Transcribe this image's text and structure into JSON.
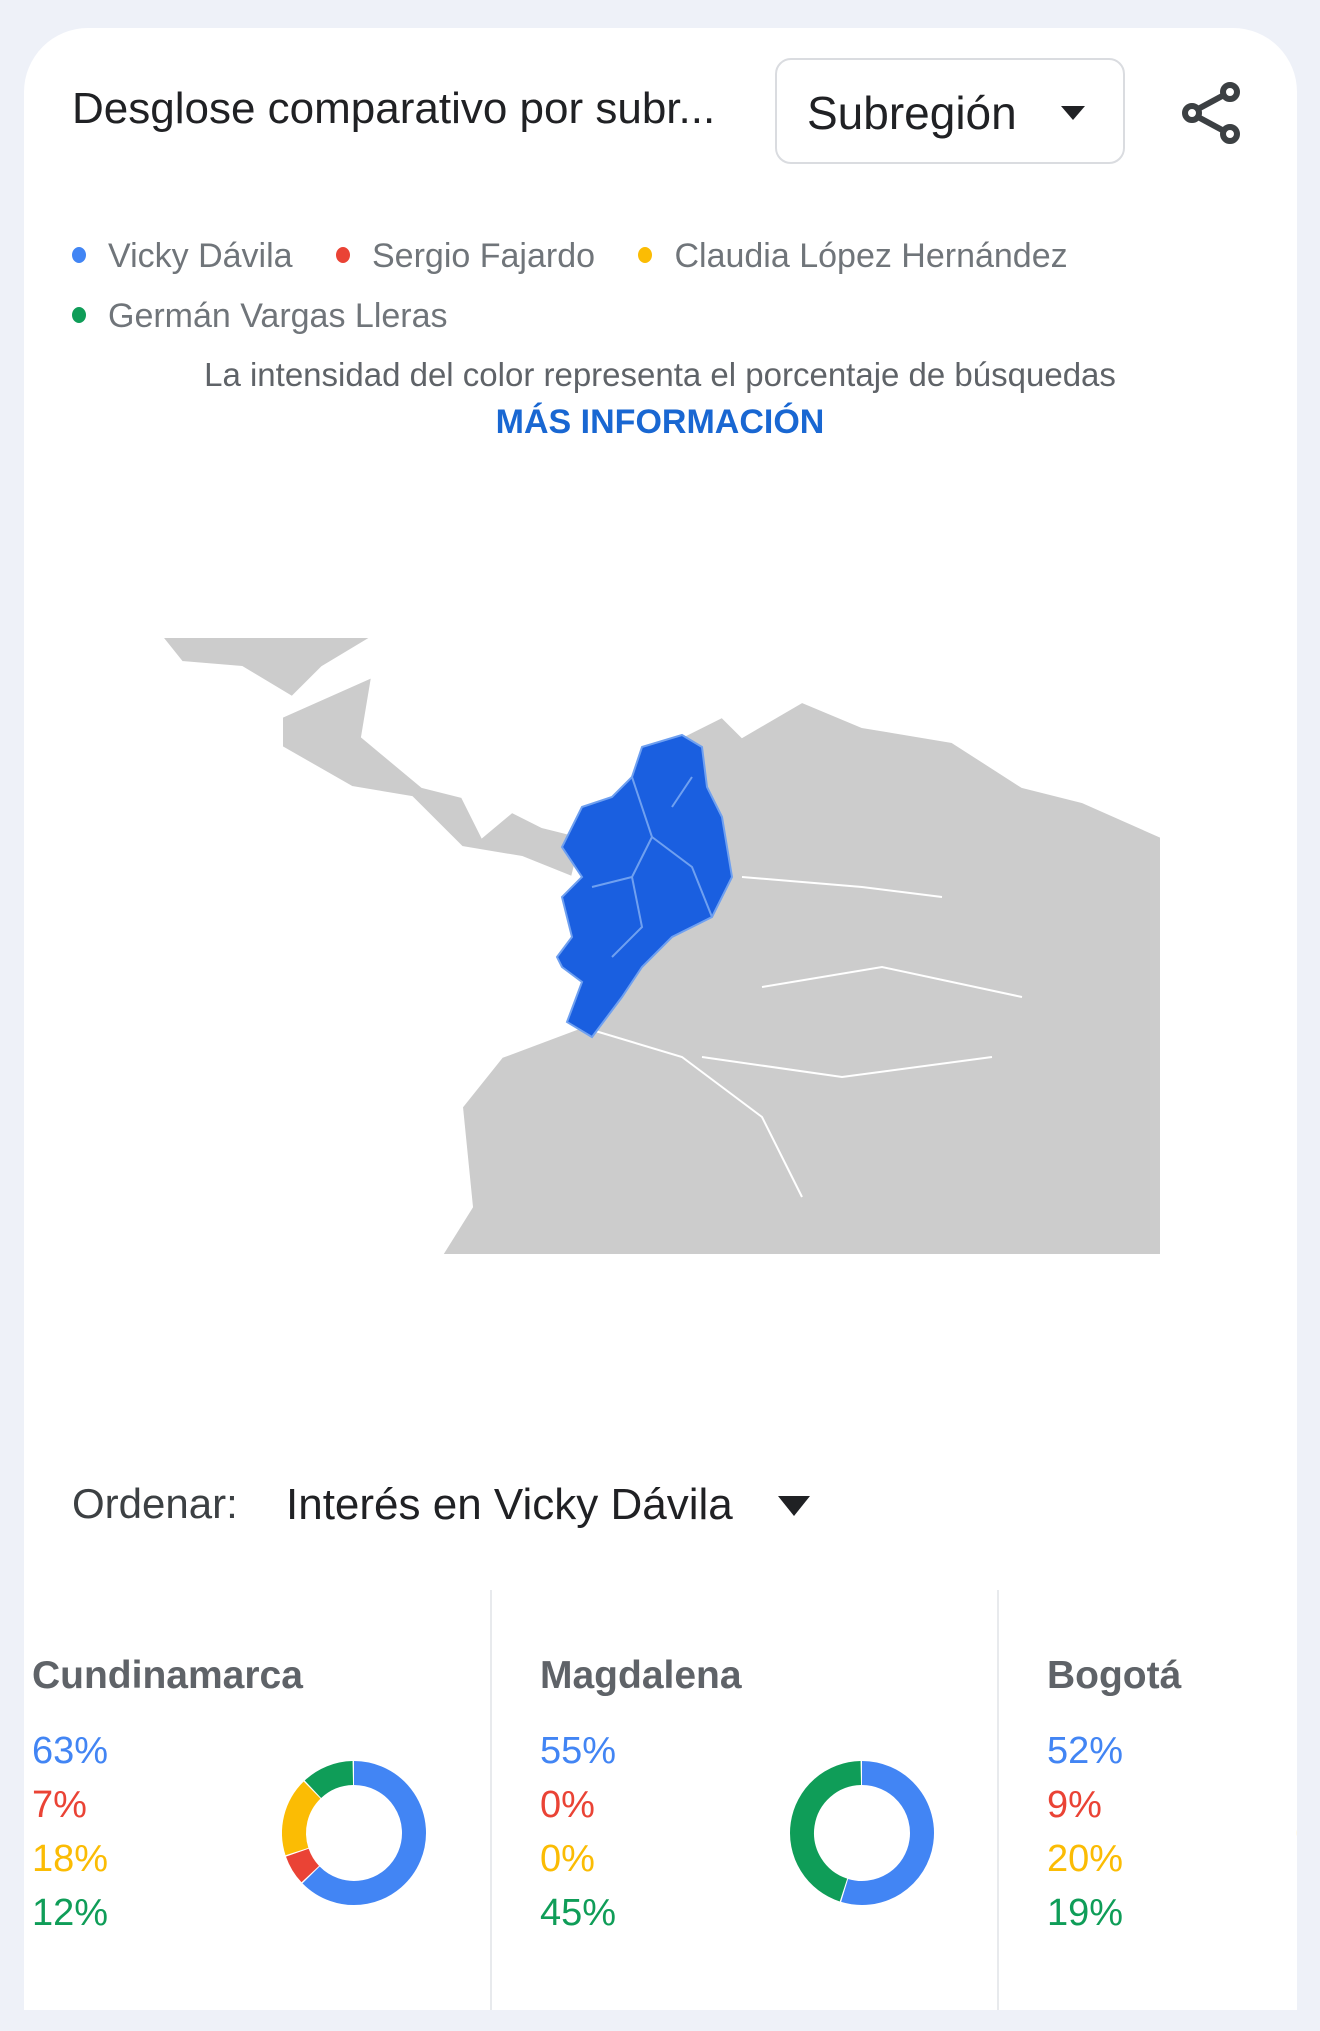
{
  "header": {
    "title": "Desglose comparativo por subr...",
    "dropdown_value": "Subregión",
    "share_icon": "share-icon"
  },
  "legend": [
    {
      "label": "Vicky Dávila",
      "color": "#4285f4"
    },
    {
      "label": "Sergio Fajardo",
      "color": "#ea4335"
    },
    {
      "label": "Claudia López Hernández",
      "color": "#fbbc04"
    },
    {
      "label": "Germán Vargas Lleras",
      "color": "#0f9d58"
    }
  ],
  "note": "La intensidad del color representa el porcentaje de búsquedas",
  "more_link": "MÁS INFORMACIÓN",
  "map": {
    "highlight_color": "#1a5fe0",
    "land_color": "#cccccc"
  },
  "sort": {
    "label": "Ordenar:",
    "value": "Interés en Vicky Dávila"
  },
  "regions": [
    {
      "name": "Cundinamarca",
      "values": [
        "63%",
        "7%",
        "18%",
        "12%"
      ],
      "shares": [
        63,
        7,
        18,
        12
      ]
    },
    {
      "name": "Magdalena",
      "values": [
        "55%",
        "0%",
        "0%",
        "45%"
      ],
      "shares": [
        55,
        0,
        0,
        45
      ]
    },
    {
      "name": "Bogotá",
      "values": [
        "52%",
        "9%",
        "20%",
        "19%"
      ],
      "shares": [
        52,
        9,
        20,
        19
      ]
    }
  ],
  "series_colors": [
    "#4285f4",
    "#ea4335",
    "#fbbc04",
    "#0f9d58"
  ]
}
